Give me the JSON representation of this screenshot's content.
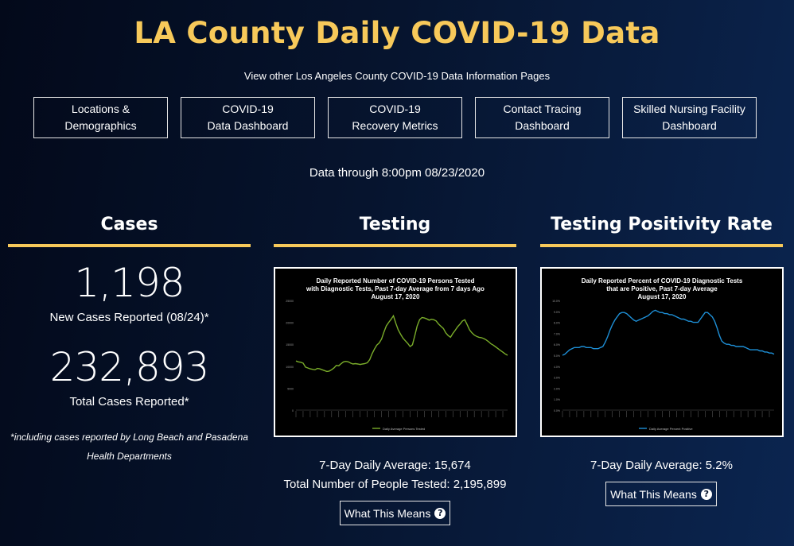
{
  "page": {
    "title": "LA County Daily COVID-19 Data",
    "subtitle": "View other Los Angeles County COVID-19 Data Information Pages",
    "data_through": "Data through 8:00pm 08/23/2020"
  },
  "nav": [
    {
      "label": "Locations &\nDemographics"
    },
    {
      "label": "COVID-19\nData Dashboard"
    },
    {
      "label": "COVID-19\nRecovery Metrics"
    },
    {
      "label": "Contact Tracing\nDashboard"
    },
    {
      "label": "Skilled Nursing Facility\nDashboard"
    }
  ],
  "cases": {
    "heading": "Cases",
    "new_cases": "1,198",
    "new_cases_label": "New Cases Reported (08/24)*",
    "total_cases": "232,893",
    "total_cases_label": "Total Cases Reported*",
    "footnote": "*including cases reported by Long Beach and Pasadena Health Departments"
  },
  "testing": {
    "heading": "Testing",
    "avg_text": "7-Day Daily Average: 15,674",
    "total_text": "Total Number of People Tested: 2,195,899",
    "button_label": "What This Means"
  },
  "positivity": {
    "heading": "Testing Positivity Rate",
    "avg_text": "7-Day Daily Average: 5.2%",
    "button_label": "What This Means"
  },
  "icons": {
    "help": "question-circle-icon"
  },
  "colors": {
    "accent": "#f7c95a",
    "testing_line": "#7aad2a",
    "positivity_line": "#1e8fd6"
  },
  "chart_data": [
    {
      "type": "line",
      "title_lines": [
        "Daily Reported Number of COVID-19 Persons Tested",
        "with Diagnostic Tests, Past 7-day Average from 7 days Ago",
        "August 17, 2020"
      ],
      "ylim": [
        0,
        25000
      ],
      "yticks": [
        "0",
        "5000",
        "10000",
        "15000",
        "20000",
        "25000"
      ],
      "legend": "Daily Average Persons Tested",
      "series": [
        {
          "name": "Daily Average Persons Tested",
          "values": [
            11200,
            11000,
            10900,
            10700,
            9800,
            9600,
            9400,
            9300,
            9200,
            9500,
            9400,
            9200,
            9000,
            8800,
            8900,
            9200,
            9600,
            10200,
            10100,
            10600,
            11000,
            11100,
            11000,
            10700,
            10500,
            10600,
            10500,
            10400,
            10500,
            10600,
            10800,
            11500,
            12800,
            13900,
            14800,
            15300,
            16200,
            17800,
            19200,
            20000,
            20700,
            21500,
            19800,
            18300,
            17300,
            16400,
            15800,
            15200,
            14500,
            14900,
            17000,
            19200,
            20600,
            21100,
            21000,
            20800,
            20500,
            20700,
            20600,
            20300,
            19600,
            19100,
            18600,
            17600,
            17000,
            16600,
            17500,
            18200,
            19000,
            19600,
            20300,
            20600,
            19500,
            18300,
            17600,
            17100,
            16800,
            16600,
            16500,
            16300,
            16000,
            15600,
            15100,
            14800,
            14400,
            14000,
            13600,
            13200,
            12800,
            12500
          ]
        }
      ]
    },
    {
      "type": "line",
      "title_lines": [
        "Daily Reported Percent of COVID-19 Diagnostic Tests",
        "that are Positive, Past 7-day Average",
        "August 17, 2020"
      ],
      "ylim": [
        0,
        10
      ],
      "yticks": [
        "0.0%",
        "1.0%",
        "2.0%",
        "3.0%",
        "4.0%",
        "5.0%",
        "6.0%",
        "7.0%",
        "8.0%",
        "9.0%",
        "10.0%"
      ],
      "legend": "Daily Average Percent Positive",
      "series": [
        {
          "name": "Daily Average Percent Positive",
          "values": [
            5.0,
            5.1,
            5.3,
            5.5,
            5.6,
            5.7,
            5.7,
            5.7,
            5.8,
            5.8,
            5.7,
            5.7,
            5.7,
            5.6,
            5.6,
            5.6,
            5.7,
            5.8,
            6.2,
            6.7,
            7.3,
            7.8,
            8.2,
            8.5,
            8.8,
            8.9,
            8.9,
            8.8,
            8.6,
            8.4,
            8.2,
            8.1,
            8.2,
            8.3,
            8.4,
            8.5,
            8.6,
            8.8,
            9.0,
            9.1,
            9.0,
            8.9,
            8.9,
            8.8,
            8.8,
            8.7,
            8.7,
            8.6,
            8.5,
            8.4,
            8.3,
            8.3,
            8.2,
            8.1,
            8.1,
            8.0,
            8.0,
            8.0,
            8.3,
            8.6,
            8.9,
            8.9,
            8.7,
            8.5,
            8.1,
            7.5,
            6.8,
            6.3,
            6.1,
            6.0,
            6.0,
            5.9,
            5.9,
            5.8,
            5.8,
            5.8,
            5.8,
            5.7,
            5.6,
            5.5,
            5.5,
            5.5,
            5.5,
            5.4,
            5.4,
            5.3,
            5.3,
            5.2,
            5.2,
            5.1
          ]
        }
      ]
    }
  ]
}
